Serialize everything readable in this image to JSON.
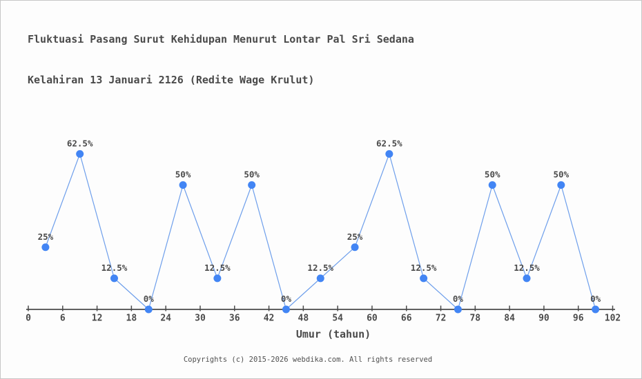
{
  "window": {
    "title_line1": "Fluktuasi Pasang Surut Kehidupan Menurut Lontar Pal Sri Sedana",
    "title_line2": "Kelahiran 13 Januari 2126 (Redite Wage Krulut)",
    "footer": "Copyrights (c) 2015-2026 webdika.com. All rights reserved"
  },
  "chart_data": {
    "type": "line",
    "title": "Fluktuasi Pasang Surut Kehidupan Menurut Lontar Pal Sri Sedana Kelahiran 13 Januari 2126 (Redite Wage Krulut)",
    "xlabel": "Umur (tahun)",
    "ylabel": "",
    "x": [
      3,
      9,
      15,
      21,
      27,
      33,
      39,
      45,
      51,
      57,
      63,
      69,
      75,
      81,
      87,
      93,
      99
    ],
    "values": [
      25,
      62.5,
      12.5,
      0,
      50,
      12.5,
      50,
      0,
      12.5,
      25,
      62.5,
      12.5,
      0,
      50,
      12.5,
      50,
      0
    ],
    "point_labels": [
      "25%",
      "62.5%",
      "12.5%",
      "0%",
      "50%",
      "12.5%",
      "50%",
      "0%",
      "12.5%",
      "25%",
      "62.5%",
      "12.5%",
      "0%",
      "50%",
      "12.5%",
      "50%",
      "0%"
    ],
    "x_ticks": [
      0,
      6,
      12,
      18,
      24,
      30,
      36,
      42,
      48,
      54,
      60,
      66,
      72,
      78,
      84,
      90,
      96,
      102
    ],
    "xlim": [
      0,
      102
    ],
    "ylim": [
      0,
      100
    ],
    "grid": false,
    "legend": false,
    "colors": {
      "marker": "#4285f4",
      "line": "#6d9eeb",
      "axis": "#4a4a4a",
      "text": "#4a4a4a",
      "background": "#fdfdfd"
    }
  }
}
